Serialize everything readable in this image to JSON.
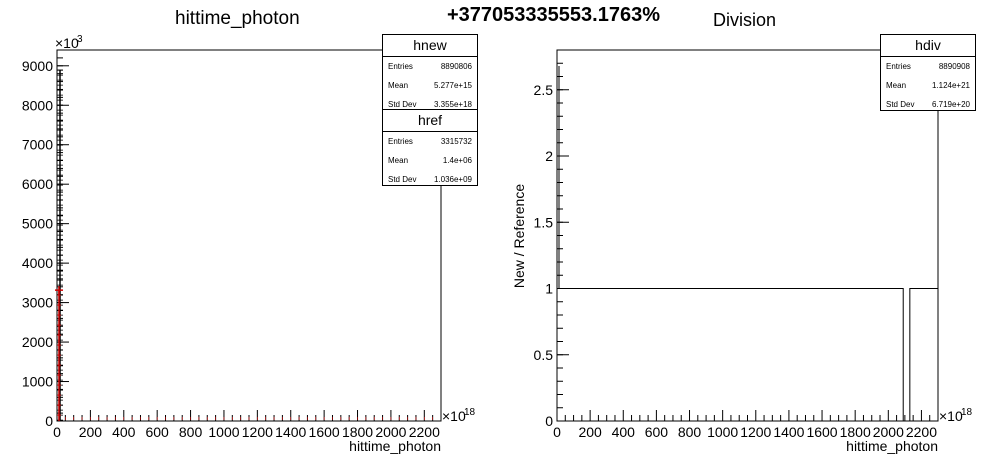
{
  "header": {
    "comparison_percent": "+377053335553.1763%"
  },
  "chart_data": [
    {
      "type": "histogram",
      "title": "hittime_photon",
      "xlabel": "hittime_photon",
      "x_multiplier": "×10",
      "x_exponent": "18",
      "y_multiplier": "×10",
      "y_exponent": "3",
      "xlim": [
        0,
        2300
      ],
      "ylim": [
        0,
        9400
      ],
      "xticks": [
        0,
        200,
        400,
        600,
        800,
        1000,
        1200,
        1400,
        1600,
        1800,
        2000,
        2200
      ],
      "xtick_labels": [
        "0",
        "200",
        "400",
        "600",
        "800",
        "1000",
        "1200",
        "1400",
        "1600",
        "1800",
        "2000",
        "2200"
      ],
      "yticks": [
        0,
        1000,
        2000,
        3000,
        4000,
        5000,
        6000,
        7000,
        8000,
        9000
      ],
      "ytick_labels": [
        "0",
        "1000",
        "2000",
        "3000",
        "4000",
        "5000",
        "6000",
        "7000",
        "8000",
        "9000"
      ],
      "series": [
        {
          "name": "hnew",
          "color": "#000000",
          "peak_bin_x": 0,
          "peak_value": 8890
        },
        {
          "name": "href",
          "color": "#cc0000",
          "peak_bin_x": 0,
          "peak_value": 3316
        }
      ],
      "stats": [
        {
          "name": "hnew",
          "entries": "8890806",
          "mean": "5.277e+15",
          "std_dev": "3.355e+18"
        },
        {
          "name": "href",
          "entries": "3315732",
          "mean": "1.4e+06",
          "std_dev": "1.036e+09"
        }
      ],
      "stat_labels": {
        "entries": "Entries",
        "mean": "Mean",
        "std_dev": "Std Dev"
      }
    },
    {
      "type": "histogram",
      "title": "Division",
      "xlabel": "hittime_photon",
      "ylabel": "New / Reference",
      "x_multiplier": "×10",
      "x_exponent": "18",
      "xlim": [
        0,
        2300
      ],
      "ylim": [
        0,
        2.8
      ],
      "xticks": [
        0,
        200,
        400,
        600,
        800,
        1000,
        1200,
        1400,
        1600,
        1800,
        2000,
        2200
      ],
      "xtick_labels": [
        "0",
        "200",
        "400",
        "600",
        "800",
        "1000",
        "1200",
        "1400",
        "1600",
        "1800",
        "2000",
        "2200"
      ],
      "yticks": [
        0,
        0.5,
        1,
        1.5,
        2,
        2.5
      ],
      "ytick_labels": [
        "0",
        "0.5",
        "1",
        "1.5",
        "2",
        "2.5"
      ],
      "segments": [
        {
          "x_start": 0,
          "x_end": 2090,
          "value": 1
        },
        {
          "x_start": 2090,
          "x_end": 2130,
          "value": 0
        },
        {
          "x_start": 2130,
          "x_end": 2300,
          "value": 1
        }
      ],
      "stats": [
        {
          "name": "hdiv",
          "entries": "8890908",
          "mean": "1.124e+21",
          "std_dev": "6.719e+20"
        }
      ],
      "stat_labels": {
        "entries": "Entries",
        "mean": "Mean",
        "std_dev": "Std Dev"
      }
    }
  ]
}
